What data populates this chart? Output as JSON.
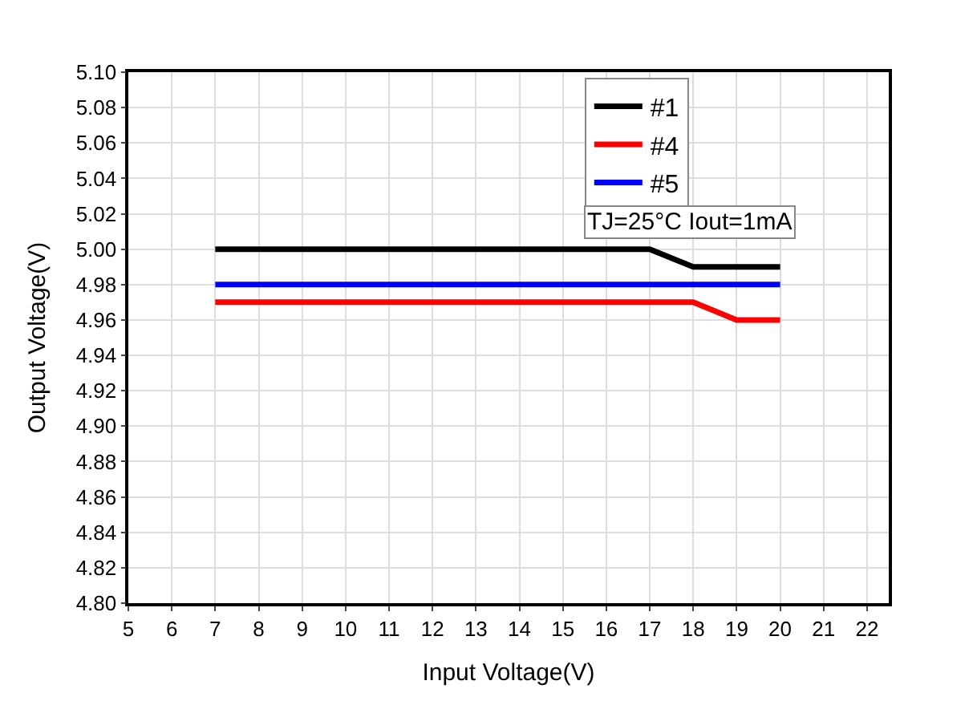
{
  "chart_data": {
    "type": "line",
    "xlabel": "Input Voltage(V)",
    "ylabel": "Output Voltage(V)",
    "series": [
      {
        "name": "#1",
        "color": "#000000",
        "x": [
          7,
          17,
          18,
          20
        ],
        "values": [
          5.0,
          5.0,
          4.99,
          4.99
        ]
      },
      {
        "name": "#4",
        "color": "#ff0000",
        "x": [
          7,
          18,
          19,
          20
        ],
        "values": [
          4.97,
          4.97,
          4.96,
          4.96
        ]
      },
      {
        "name": "#5",
        "color": "#0000ff",
        "x": [
          7,
          20
        ],
        "values": [
          4.98,
          4.98
        ]
      }
    ],
    "annotations": [
      "TJ=25°C Iout=1mA"
    ],
    "xlim": [
      5,
      22.5
    ],
    "xticks": [
      5,
      6,
      7,
      8,
      9,
      10,
      11,
      12,
      13,
      14,
      15,
      16,
      17,
      18,
      19,
      20,
      21,
      22
    ],
    "ylim": [
      4.8,
      5.1
    ],
    "yticks": [
      {
        "value": 4.8,
        "label": "4.80"
      },
      {
        "value": 4.82,
        "label": "4.82"
      },
      {
        "value": 4.84,
        "label": "4.84"
      },
      {
        "value": 4.86,
        "label": "4.86"
      },
      {
        "value": 4.88,
        "label": "4.88"
      },
      {
        "value": 4.9,
        "label": "4.90"
      },
      {
        "value": 4.92,
        "label": "4.92"
      },
      {
        "value": 4.94,
        "label": "4.94"
      },
      {
        "value": 4.96,
        "label": "4.96"
      },
      {
        "value": 4.98,
        "label": "4.98"
      },
      {
        "value": 5.0,
        "label": "5.00"
      },
      {
        "value": 5.02,
        "label": "5.02"
      },
      {
        "value": 5.04,
        "label": "5.04"
      },
      {
        "value": 5.06,
        "label": "5.06"
      },
      {
        "value": 5.08,
        "label": "5.08"
      },
      {
        "value": 5.1,
        "label": "5.10"
      }
    ],
    "grid": true,
    "legend": "top right",
    "marker": "none",
    "line_style": "solid"
  }
}
